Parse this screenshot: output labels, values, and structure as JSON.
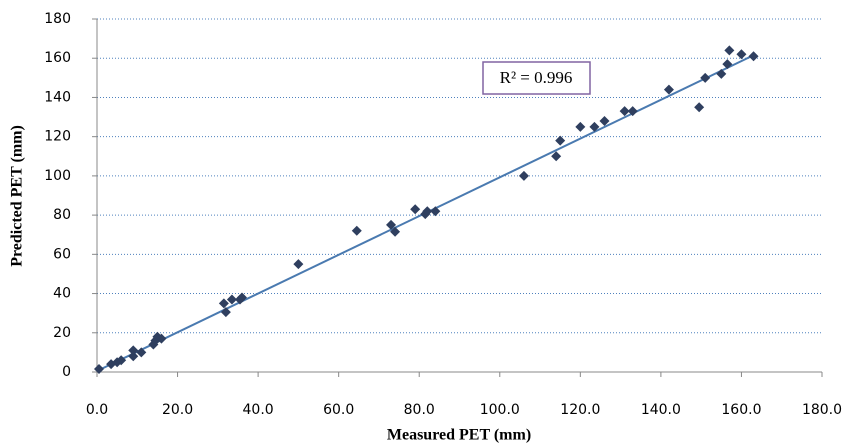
{
  "chart_data": {
    "type": "scatter",
    "x_label": "Measured PET (mm)",
    "y_label": "Predicted PET (mm)",
    "annotation": "R² = 0.996",
    "x": [
      0.5,
      3.5,
      5,
      6,
      9,
      9,
      11,
      14,
      14.5,
      15,
      16,
      31.5,
      32,
      33.5,
      35.5,
      36,
      50,
      64.5,
      73,
      74,
      79,
      81.5,
      82,
      84,
      106,
      114,
      115,
      120,
      123.5,
      126,
      131,
      133,
      142,
      149.5,
      151,
      155,
      156.5,
      157,
      160,
      163
    ],
    "values": [
      1.5,
      4,
      5,
      6,
      8,
      11,
      10,
      14,
      16,
      18,
      17,
      35,
      30.5,
      37,
      37,
      38,
      55,
      72,
      75,
      71.5,
      83,
      80.5,
      82,
      82,
      100,
      110,
      118,
      125,
      125,
      128,
      133,
      133,
      144,
      135,
      150,
      152,
      157,
      164,
      162,
      161
    ],
    "color": "#2f3f5f",
    "trendline": {
      "x": [
        0,
        163
      ],
      "values": [
        0.5,
        161.5
      ],
      "color": "#4a7ab0"
    },
    "xlim": [
      0,
      180
    ],
    "ylim": [
      0,
      180
    ],
    "xticks": [
      {
        "value": 0,
        "label": "0.0"
      },
      {
        "value": 20,
        "label": "20.0"
      },
      {
        "value": 40,
        "label": "40.0"
      },
      {
        "value": 60,
        "label": "60.0"
      },
      {
        "value": 80,
        "label": "80.0"
      },
      {
        "value": 100,
        "label": "100.0"
      },
      {
        "value": 120,
        "label": "120.0"
      },
      {
        "value": 140,
        "label": "140.0"
      },
      {
        "value": 160,
        "label": "160.0"
      },
      {
        "value": 180,
        "label": "180.0"
      }
    ],
    "yticks": [
      0,
      20,
      40,
      60,
      80,
      100,
      120,
      140,
      160,
      180
    ],
    "grid": true
  }
}
